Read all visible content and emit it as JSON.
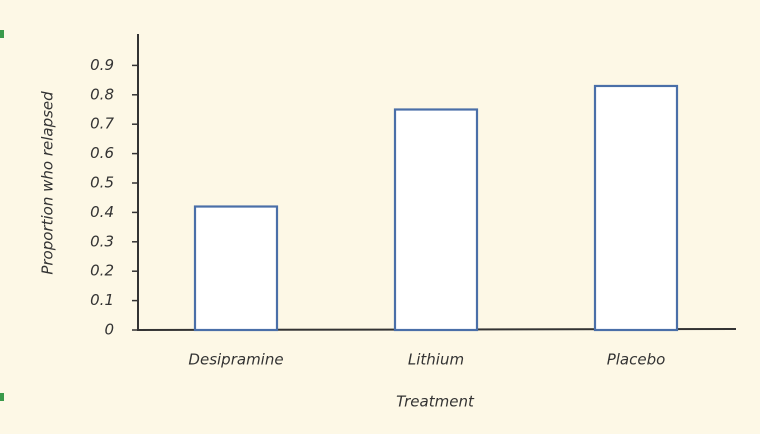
{
  "chart_data": {
    "type": "bar",
    "xlabel": "Treatment",
    "ylabel": "Proportion who relapsed",
    "categories": [
      "Desipramine",
      "Lithium",
      "Placebo"
    ],
    "values": [
      0.42,
      0.75,
      0.83
    ],
    "color": "#4a6fa8",
    "ylim": [
      0,
      1
    ],
    "yticks": [
      0,
      0.1,
      0.2,
      0.3,
      0.4,
      0.5,
      0.6,
      0.7,
      0.8,
      0.9
    ]
  }
}
